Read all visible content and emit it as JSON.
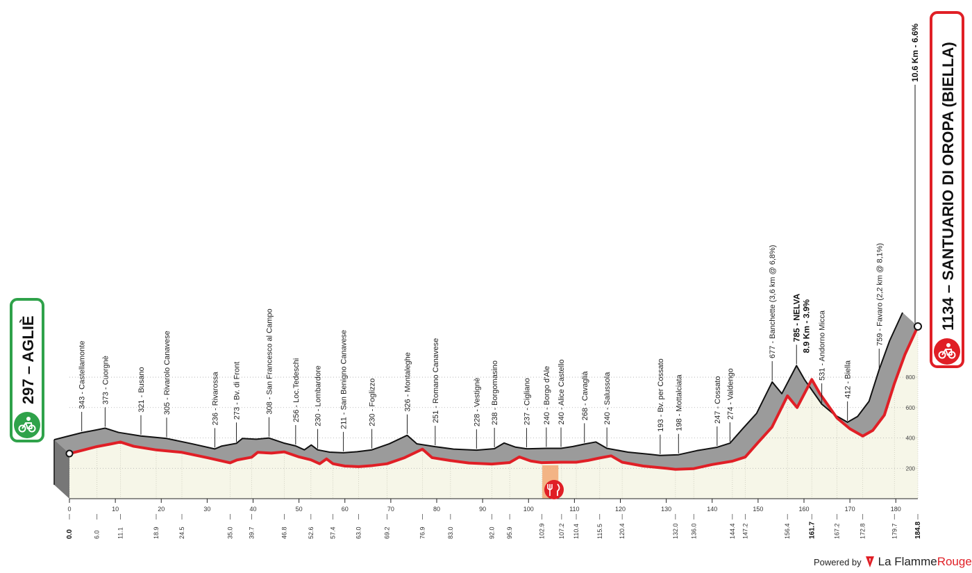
{
  "start": {
    "altitude": "297",
    "name": "AGLIÈ",
    "bg": "#2fa24a"
  },
  "finish": {
    "altitude": "1134",
    "name": "SANTUARIO DI OROPA (BIELLA)",
    "bg": "#e01f26"
  },
  "final_climb": "10.6 Km - 6.6%",
  "footer": {
    "powered": "Powered by",
    "brand_a": "La Flamme",
    "brand_b": "Rouge"
  },
  "colors": {
    "profile_fill": "#9b9b9b",
    "profile_edge": "#111111",
    "route": "#e01f26",
    "ground": "#f6f6e8",
    "feed_zone": "#f2a46b"
  },
  "chart_data": {
    "type": "area",
    "xlim": [
      0,
      184.8
    ],
    "ylim": [
      0,
      1134
    ],
    "x_ticks": [
      0,
      10,
      20,
      30,
      40,
      50,
      60,
      70,
      80,
      90,
      100,
      110,
      120,
      130,
      140,
      150,
      160,
      170,
      180
    ],
    "y_ticks": [
      200,
      400,
      600,
      800
    ],
    "profile": [
      [
        0,
        297
      ],
      [
        3,
        320
      ],
      [
        6,
        343
      ],
      [
        9,
        360
      ],
      [
        11.1,
        373
      ],
      [
        14,
        345
      ],
      [
        18.9,
        321
      ],
      [
        24.5,
        305
      ],
      [
        30,
        270
      ],
      [
        35,
        236
      ],
      [
        36.5,
        255
      ],
      [
        39.7,
        273
      ],
      [
        41,
        305
      ],
      [
        44,
        300
      ],
      [
        46.8,
        308
      ],
      [
        50,
        275
      ],
      [
        52.6,
        256
      ],
      [
        54.5,
        230
      ],
      [
        56,
        262
      ],
      [
        57.4,
        230
      ],
      [
        60,
        215
      ],
      [
        63,
        211
      ],
      [
        66,
        218
      ],
      [
        69.2,
        230
      ],
      [
        73,
        270
      ],
      [
        76.9,
        326
      ],
      [
        79,
        270
      ],
      [
        83,
        251
      ],
      [
        87,
        235
      ],
      [
        92,
        228
      ],
      [
        95.9,
        238
      ],
      [
        98,
        275
      ],
      [
        100.5,
        248
      ],
      [
        102.9,
        237
      ],
      [
        107.2,
        240
      ],
      [
        110.4,
        240
      ],
      [
        113,
        252
      ],
      [
        115.5,
        268
      ],
      [
        118,
        282
      ],
      [
        120.4,
        240
      ],
      [
        125,
        215
      ],
      [
        130,
        200
      ],
      [
        132,
        193
      ],
      [
        136,
        198
      ],
      [
        140,
        225
      ],
      [
        144.4,
        247
      ],
      [
        147.2,
        274
      ],
      [
        150,
        370
      ],
      [
        153,
        470
      ],
      [
        156.4,
        677
      ],
      [
        158.5,
        600
      ],
      [
        161.7,
        785
      ],
      [
        163.5,
        690
      ],
      [
        167.2,
        531
      ],
      [
        170,
        460
      ],
      [
        172.8,
        412
      ],
      [
        175,
        450
      ],
      [
        177.5,
        550
      ],
      [
        179.7,
        759
      ],
      [
        182,
        950
      ],
      [
        184.8,
        1134
      ]
    ],
    "places": [
      {
        "km": 6.0,
        "label": "343 - Castellamonte"
      },
      {
        "km": 11.1,
        "label": "373 - Cuorgnè"
      },
      {
        "km": 18.9,
        "label": "321 - Busano"
      },
      {
        "km": 24.5,
        "label": "305 - Rivarolo Canavese"
      },
      {
        "km": 35.0,
        "label": "236 - Rivarossa"
      },
      {
        "km": 39.7,
        "label": "273 - Bv. di Front"
      },
      {
        "km": 46.8,
        "label": "308 - San Francesco al Campo"
      },
      {
        "km": 52.6,
        "label": "256 - Loc.Tedeschi"
      },
      {
        "km": 57.4,
        "label": "230 - Lombardore"
      },
      {
        "km": 63.0,
        "label": "211 - San Benigno Canavese"
      },
      {
        "km": 69.2,
        "label": "230 - Foglizzo"
      },
      {
        "km": 76.9,
        "label": "326 - Montaleghe"
      },
      {
        "km": 83.0,
        "label": "251 - Romano Canavese"
      },
      {
        "km": 92.0,
        "label": "228 - Vestignè"
      },
      {
        "km": 95.9,
        "label": "238 - Borgomasino"
      },
      {
        "km": 102.9,
        "label": "237 - Cigliano"
      },
      {
        "km": 107.2,
        "label": "240 - Borgo d'Ale"
      },
      {
        "km": 110.4,
        "label": "240 - Alice Castello"
      },
      {
        "km": 115.5,
        "label": "268 - Cavaglià"
      },
      {
        "km": 120.4,
        "label": "240 - Salussola"
      },
      {
        "km": 132.0,
        "label": "193 - Bv. per Cossato"
      },
      {
        "km": 136.0,
        "label": "198 - Mottalciata"
      },
      {
        "km": 144.4,
        "label": "247 - Cossato"
      },
      {
        "km": 147.2,
        "label": "274 - Valdengo"
      },
      {
        "km": 156.4,
        "label": "677 - Banchette (3,6 km @ 6,8%)"
      },
      {
        "km": 161.7,
        "label": "785 - NELVA",
        "label2": "8.9 Km - 3.9%",
        "bold": true
      },
      {
        "km": 167.2,
        "label": "531 - Andorno Micca"
      },
      {
        "km": 172.8,
        "label": "412 - Biella"
      },
      {
        "km": 179.7,
        "label": "759 - Favaro (2,2 km @ 8,1%)"
      }
    ],
    "km_marks": [
      "0.0",
      "6.0",
      "11.1",
      "18.9",
      "24.5",
      "35.0",
      "39.7",
      "46.8",
      "52.6",
      "57.4",
      "63.0",
      "69.2",
      "76.9",
      "83.0",
      "92.0",
      "95.9",
      "102.9",
      "107.2",
      "110.4",
      "115.5",
      "120.4",
      "132.0",
      "136.0",
      "144.4",
      "147.2",
      "156.4",
      "161.7",
      "167.2",
      "172.8",
      "179.7",
      "184.8"
    ],
    "bold_km_marks": [
      "0.0",
      "161.7",
      "184.8"
    ],
    "feed_zone_km": [
      103,
      106.5
    ]
  }
}
